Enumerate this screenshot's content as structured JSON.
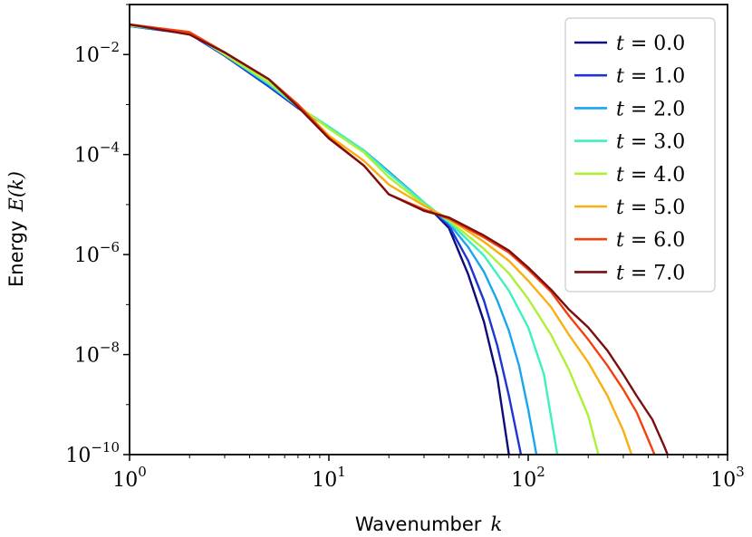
{
  "chart_data": {
    "type": "line",
    "x_scale": "log",
    "y_scale": "log",
    "xlim": [
      1,
      1000
    ],
    "ylim": [
      1e-10,
      0.1
    ],
    "xlabel": "Wavenumber k",
    "xlabel_text": "Wavenumber",
    "xlabel_var": "k",
    "ylabel": "Energy E(k)",
    "ylabel_text": "Energy",
    "ylabel_var": "E(k)",
    "x_ticks": [
      {
        "base": "10",
        "exp": "0",
        "value": 1
      },
      {
        "base": "10",
        "exp": "1",
        "value": 10
      },
      {
        "base": "10",
        "exp": "2",
        "value": 100
      },
      {
        "base": "10",
        "exp": "3",
        "value": 1000
      }
    ],
    "y_ticks": [
      {
        "base": "10",
        "exp": "−2",
        "value": 0.01
      },
      {
        "base": "10",
        "exp": "−4",
        "value": 0.0001
      },
      {
        "base": "10",
        "exp": "−6",
        "value": 1e-06
      },
      {
        "base": "10",
        "exp": "−8",
        "value": 1e-08
      },
      {
        "base": "10",
        "exp": "−10",
        "value": 1e-10
      }
    ],
    "legend_position": "top-right",
    "series": [
      {
        "name": "t = 0.0",
        "var": "t",
        "eq": " = 0.0",
        "color": "#0b0b7a",
        "points": [
          [
            1,
            0.037
          ],
          [
            2,
            0.026
          ],
          [
            3,
            0.0095
          ],
          [
            5,
            0.0023
          ],
          [
            7,
            0.00085
          ],
          [
            10,
            0.00035
          ],
          [
            15,
            0.00012
          ],
          [
            20,
            4.5e-05
          ],
          [
            30,
            1.1e-05
          ],
          [
            40,
            3.4e-06
          ],
          [
            50,
            4e-07
          ],
          [
            60,
            4.5e-08
          ],
          [
            70,
            3.5e-09
          ],
          [
            80,
            1e-10
          ]
        ]
      },
      {
        "name": "t = 1.0",
        "var": "t",
        "eq": " = 1.0",
        "color": "#1f35d0",
        "points": [
          [
            1,
            0.037
          ],
          [
            2,
            0.026
          ],
          [
            3,
            0.0095
          ],
          [
            5,
            0.0023
          ],
          [
            7,
            0.00085
          ],
          [
            10,
            0.00035
          ],
          [
            15,
            0.00012
          ],
          [
            20,
            4.5e-05
          ],
          [
            30,
            1.1e-05
          ],
          [
            40,
            3.8e-06
          ],
          [
            50,
            7.5e-07
          ],
          [
            60,
            1.2e-07
          ],
          [
            70,
            1.5e-08
          ],
          [
            80,
            1.5e-09
          ],
          [
            92,
            1e-10
          ]
        ]
      },
      {
        "name": "t = 2.0",
        "var": "t",
        "eq": " = 2.0",
        "color": "#18a6ec",
        "points": [
          [
            1,
            0.037
          ],
          [
            2,
            0.027
          ],
          [
            3,
            0.0098
          ],
          [
            5,
            0.0025
          ],
          [
            7,
            0.0009
          ],
          [
            10,
            0.00036
          ],
          [
            15,
            0.00012
          ],
          [
            20,
            4.5e-05
          ],
          [
            30,
            1.1e-05
          ],
          [
            40,
            4.2e-06
          ],
          [
            50,
            1.4e-06
          ],
          [
            60,
            4.5e-07
          ],
          [
            70,
            1.2e-07
          ],
          [
            80,
            3e-08
          ],
          [
            90,
            6e-09
          ],
          [
            100,
            8e-10
          ],
          [
            110,
            1e-10
          ]
        ]
      },
      {
        "name": "t = 3.0",
        "var": "t",
        "eq": " = 3.0",
        "color": "#3ef0c0",
        "points": [
          [
            1,
            0.038
          ],
          [
            2,
            0.027
          ],
          [
            3,
            0.01
          ],
          [
            5,
            0.0026
          ],
          [
            7,
            0.0009
          ],
          [
            10,
            0.00036
          ],
          [
            15,
            0.00012
          ],
          [
            20,
            4.2e-05
          ],
          [
            30,
            1.1e-05
          ],
          [
            40,
            4.5e-06
          ],
          [
            60,
            9.5e-07
          ],
          [
            80,
            1.9e-07
          ],
          [
            100,
            3.5e-08
          ],
          [
            120,
            4e-09
          ],
          [
            140,
            1e-10
          ]
        ]
      },
      {
        "name": "t = 4.0",
        "var": "t",
        "eq": " = 4.0",
        "color": "#aef035",
        "points": [
          [
            1,
            0.038
          ],
          [
            2,
            0.028
          ],
          [
            3,
            0.01
          ],
          [
            5,
            0.0028
          ],
          [
            7,
            0.00095
          ],
          [
            10,
            0.00033
          ],
          [
            15,
            0.00011
          ],
          [
            20,
            3.5e-05
          ],
          [
            30,
            1e-05
          ],
          [
            40,
            4.8e-06
          ],
          [
            60,
            1.3e-06
          ],
          [
            80,
            4.2e-07
          ],
          [
            100,
            1.3e-07
          ],
          [
            130,
            2.5e-08
          ],
          [
            160,
            5e-09
          ],
          [
            200,
            6e-10
          ],
          [
            225,
            1e-10
          ]
        ]
      },
      {
        "name": "t = 5.0",
        "var": "t",
        "eq": " = 5.0",
        "color": "#f8b010",
        "points": [
          [
            1,
            0.039
          ],
          [
            2,
            0.028
          ],
          [
            3,
            0.011
          ],
          [
            5,
            0.0032
          ],
          [
            7,
            0.001
          ],
          [
            10,
            0.00024
          ],
          [
            15,
            7.5e-05
          ],
          [
            20,
            2.5e-05
          ],
          [
            30,
            9.5e-06
          ],
          [
            40,
            5.2e-06
          ],
          [
            60,
            1.8e-06
          ],
          [
            80,
            7.5e-07
          ],
          [
            100,
            3e-07
          ],
          [
            130,
            9e-08
          ],
          [
            160,
            2.5e-08
          ],
          [
            200,
            7e-09
          ],
          [
            250,
            1.5e-09
          ],
          [
            300,
            3e-10
          ],
          [
            330,
            1e-10
          ]
        ]
      },
      {
        "name": "t = 6.0",
        "var": "t",
        "eq": " = 6.0",
        "color": "#f5400e",
        "points": [
          [
            1,
            0.04
          ],
          [
            2,
            0.028
          ],
          [
            3,
            0.011
          ],
          [
            5,
            0.0032
          ],
          [
            7,
            0.001
          ],
          [
            10,
            0.00022
          ],
          [
            15,
            6e-05
          ],
          [
            20,
            1.6e-05
          ],
          [
            30,
            8e-06
          ],
          [
            40,
            5.2e-06
          ],
          [
            60,
            2.2e-06
          ],
          [
            80,
            1.1e-06
          ],
          [
            100,
            5e-07
          ],
          [
            130,
            1.8e-07
          ],
          [
            160,
            6e-08
          ],
          [
            200,
            2e-08
          ],
          [
            250,
            6e-09
          ],
          [
            300,
            2e-09
          ],
          [
            350,
            7e-10
          ],
          [
            400,
            2e-10
          ],
          [
            430,
            1e-10
          ]
        ]
      },
      {
        "name": "t = 7.0",
        "var": "t",
        "eq": " = 7.0",
        "color": "#7a0d0d",
        "points": [
          [
            1,
            0.04
          ],
          [
            2,
            0.025
          ],
          [
            3,
            0.011
          ],
          [
            5,
            0.0032
          ],
          [
            7,
            0.0009
          ],
          [
            10,
            0.00021
          ],
          [
            15,
            6e-05
          ],
          [
            20,
            1.6e-05
          ],
          [
            30,
            7.5e-06
          ],
          [
            40,
            5.5e-06
          ],
          [
            60,
            2.4e-06
          ],
          [
            80,
            1.2e-06
          ],
          [
            100,
            5.5e-07
          ],
          [
            130,
            2e-07
          ],
          [
            160,
            8e-08
          ],
          [
            200,
            3.5e-08
          ],
          [
            250,
            1.2e-08
          ],
          [
            300,
            4e-09
          ],
          [
            350,
            1.5e-09
          ],
          [
            420,
            5e-10
          ],
          [
            480,
            1.5e-10
          ],
          [
            500,
            1e-10
          ]
        ]
      }
    ]
  }
}
